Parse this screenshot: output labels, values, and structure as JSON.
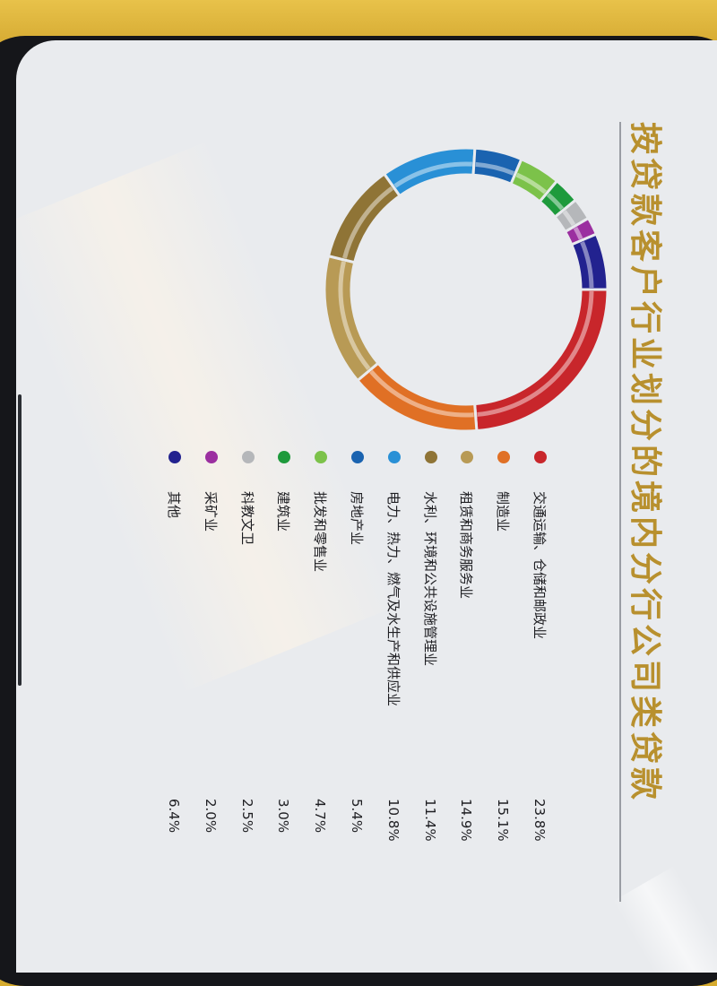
{
  "chart_data": {
    "type": "pie",
    "title": "按贷款客户行业划分的境内分行公司类贷款",
    "legend_position": "below",
    "slices": [
      {
        "label": "交通运输、仓储和邮政业",
        "value": 23.8,
        "value_label": "23.8%",
        "color": "#c8262b"
      },
      {
        "label": "制造业",
        "value": 15.1,
        "value_label": "15.1%",
        "color": "#e07025"
      },
      {
        "label": "租赁和商务服务业",
        "value": 14.9,
        "value_label": "14.9%",
        "color": "#b89a55"
      },
      {
        "label": "水利、环境和公共设施管理业",
        "value": 11.4,
        "value_label": "11.4%",
        "color": "#8f7436"
      },
      {
        "label": "电力、热力、燃气及水生产和供应业",
        "value": 10.8,
        "value_label": "10.8%",
        "color": "#2990d6"
      },
      {
        "label": "房地产业",
        "value": 5.4,
        "value_label": "5.4%",
        "color": "#1a63b0"
      },
      {
        "label": "批发和零售业",
        "value": 4.7,
        "value_label": "4.7%",
        "color": "#7cc24a"
      },
      {
        "label": "建筑业",
        "value": 3.0,
        "value_label": "3.0%",
        "color": "#1e9a3c"
      },
      {
        "label": "科教文卫",
        "value": 2.5,
        "value_label": "2.5%",
        "color": "#b5b7ba"
      },
      {
        "label": "采矿业",
        "value": 2.0,
        "value_label": "2.0%",
        "color": "#9b2fa0"
      },
      {
        "label": "其他",
        "value": 6.4,
        "value_label": "6.4%",
        "color": "#22228f"
      }
    ]
  }
}
